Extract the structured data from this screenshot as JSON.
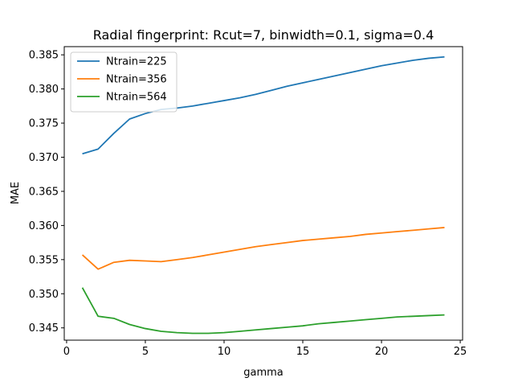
{
  "chart_data": {
    "type": "line",
    "title": "Radial fingerprint: Rcut=7, binwidth=0.1, sigma=0.4",
    "xlabel": "gamma",
    "ylabel": "MAE",
    "xlim": [
      -0.15,
      25.15
    ],
    "ylim": [
      0.3432,
      0.3862
    ],
    "xticks": [
      0,
      5,
      10,
      15,
      20,
      25
    ],
    "yticks": [
      0.345,
      0.35,
      0.355,
      0.36,
      0.365,
      0.37,
      0.375,
      0.38,
      0.385
    ],
    "grid": false,
    "legend_position": "upper-left",
    "x": [
      1,
      2,
      3,
      4,
      5,
      6,
      7,
      8,
      9,
      10,
      11,
      12,
      13,
      14,
      15,
      16,
      17,
      18,
      19,
      20,
      21,
      22,
      23,
      24
    ],
    "series": [
      {
        "name": "Ntrain=225",
        "color": "#1f77b4",
        "values": [
          0.3705,
          0.3712,
          0.3735,
          0.3756,
          0.3764,
          0.377,
          0.3772,
          0.3775,
          0.3779,
          0.3783,
          0.3787,
          0.3792,
          0.3798,
          0.3804,
          0.3809,
          0.3814,
          0.3819,
          0.3824,
          0.3829,
          0.3834,
          0.3838,
          0.3842,
          0.3845,
          0.3847
        ]
      },
      {
        "name": "Ntrain=356",
        "color": "#ff7f0e",
        "values": [
          0.3557,
          0.3536,
          0.3546,
          0.3549,
          0.3548,
          0.3547,
          0.355,
          0.3553,
          0.3557,
          0.3561,
          0.3565,
          0.3569,
          0.3572,
          0.3575,
          0.3578,
          0.358,
          0.3582,
          0.3584,
          0.3587,
          0.3589,
          0.3591,
          0.3593,
          0.3595,
          0.3597
        ]
      },
      {
        "name": "Ntrain=564",
        "color": "#2ca02c",
        "values": [
          0.3509,
          0.3467,
          0.3464,
          0.3455,
          0.3449,
          0.3445,
          0.3443,
          0.3442,
          0.3442,
          0.3443,
          0.3445,
          0.3447,
          0.3449,
          0.3451,
          0.3453,
          0.3456,
          0.3458,
          0.346,
          0.3462,
          0.3464,
          0.3466,
          0.3467,
          0.3468,
          0.3469
        ]
      }
    ]
  }
}
